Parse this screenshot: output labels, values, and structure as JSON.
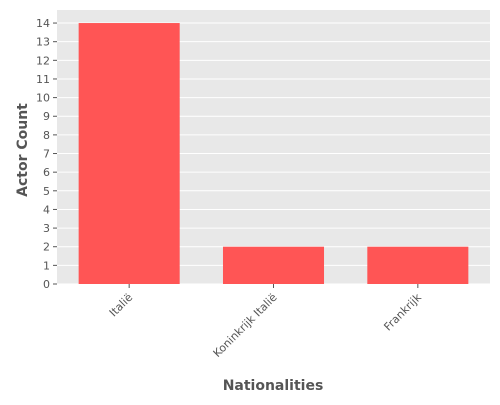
{
  "chart_data": {
    "type": "bar",
    "categories": [
      "Italië",
      "Koninkrijk Italië",
      "Frankrijk"
    ],
    "values": [
      14,
      2,
      2
    ],
    "xlabel": "Nationalities",
    "ylabel": "Actor Count",
    "ylim": [
      0,
      14.7
    ],
    "yticks": [
      0,
      1,
      2,
      3,
      4,
      5,
      6,
      7,
      8,
      9,
      10,
      11,
      12,
      13,
      14
    ],
    "grid": true,
    "legend": "none",
    "colors": {
      "bar": "#ff5555",
      "plot_background": "#e8e8e8",
      "grid": "#ffffff",
      "text": "#555555"
    }
  }
}
